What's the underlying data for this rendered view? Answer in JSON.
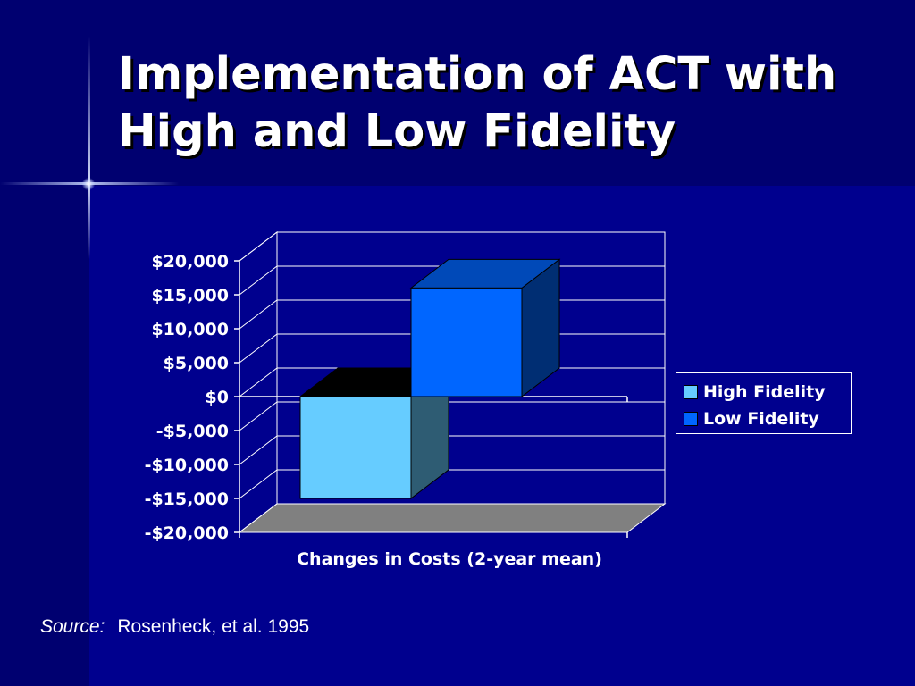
{
  "slide": {
    "title_line1": "Implementation of ACT with",
    "title_line2": "High and Low Fidelity",
    "source_label": "Source:",
    "source_text": "Rosenheck, et al. 1995"
  },
  "chart_data": {
    "type": "bar",
    "style": "3d-clustered-column",
    "categories": [
      "Changes in Costs (2-year mean)"
    ],
    "series": [
      {
        "name": "High Fidelity",
        "values": [
          -15000
        ],
        "color": "#66ccff"
      },
      {
        "name": "Low Fidelity",
        "values": [
          16000
        ],
        "color": "#0066ff"
      }
    ],
    "xlabel": "",
    "ylabel": "",
    "ylim": [
      -20000,
      20000
    ],
    "yticks": [
      20000,
      15000,
      10000,
      5000,
      0,
      -5000,
      -10000,
      -15000,
      -20000
    ],
    "ytick_labels": [
      "$20,000",
      "$15,000",
      "$10,000",
      "$5,000",
      "$0",
      "-$5,000",
      "-$10,000",
      "-$15,000",
      "-$20,000"
    ],
    "grid": true,
    "legend": "right",
    "floor_color": "#808080",
    "text_color": "#ffffff"
  }
}
